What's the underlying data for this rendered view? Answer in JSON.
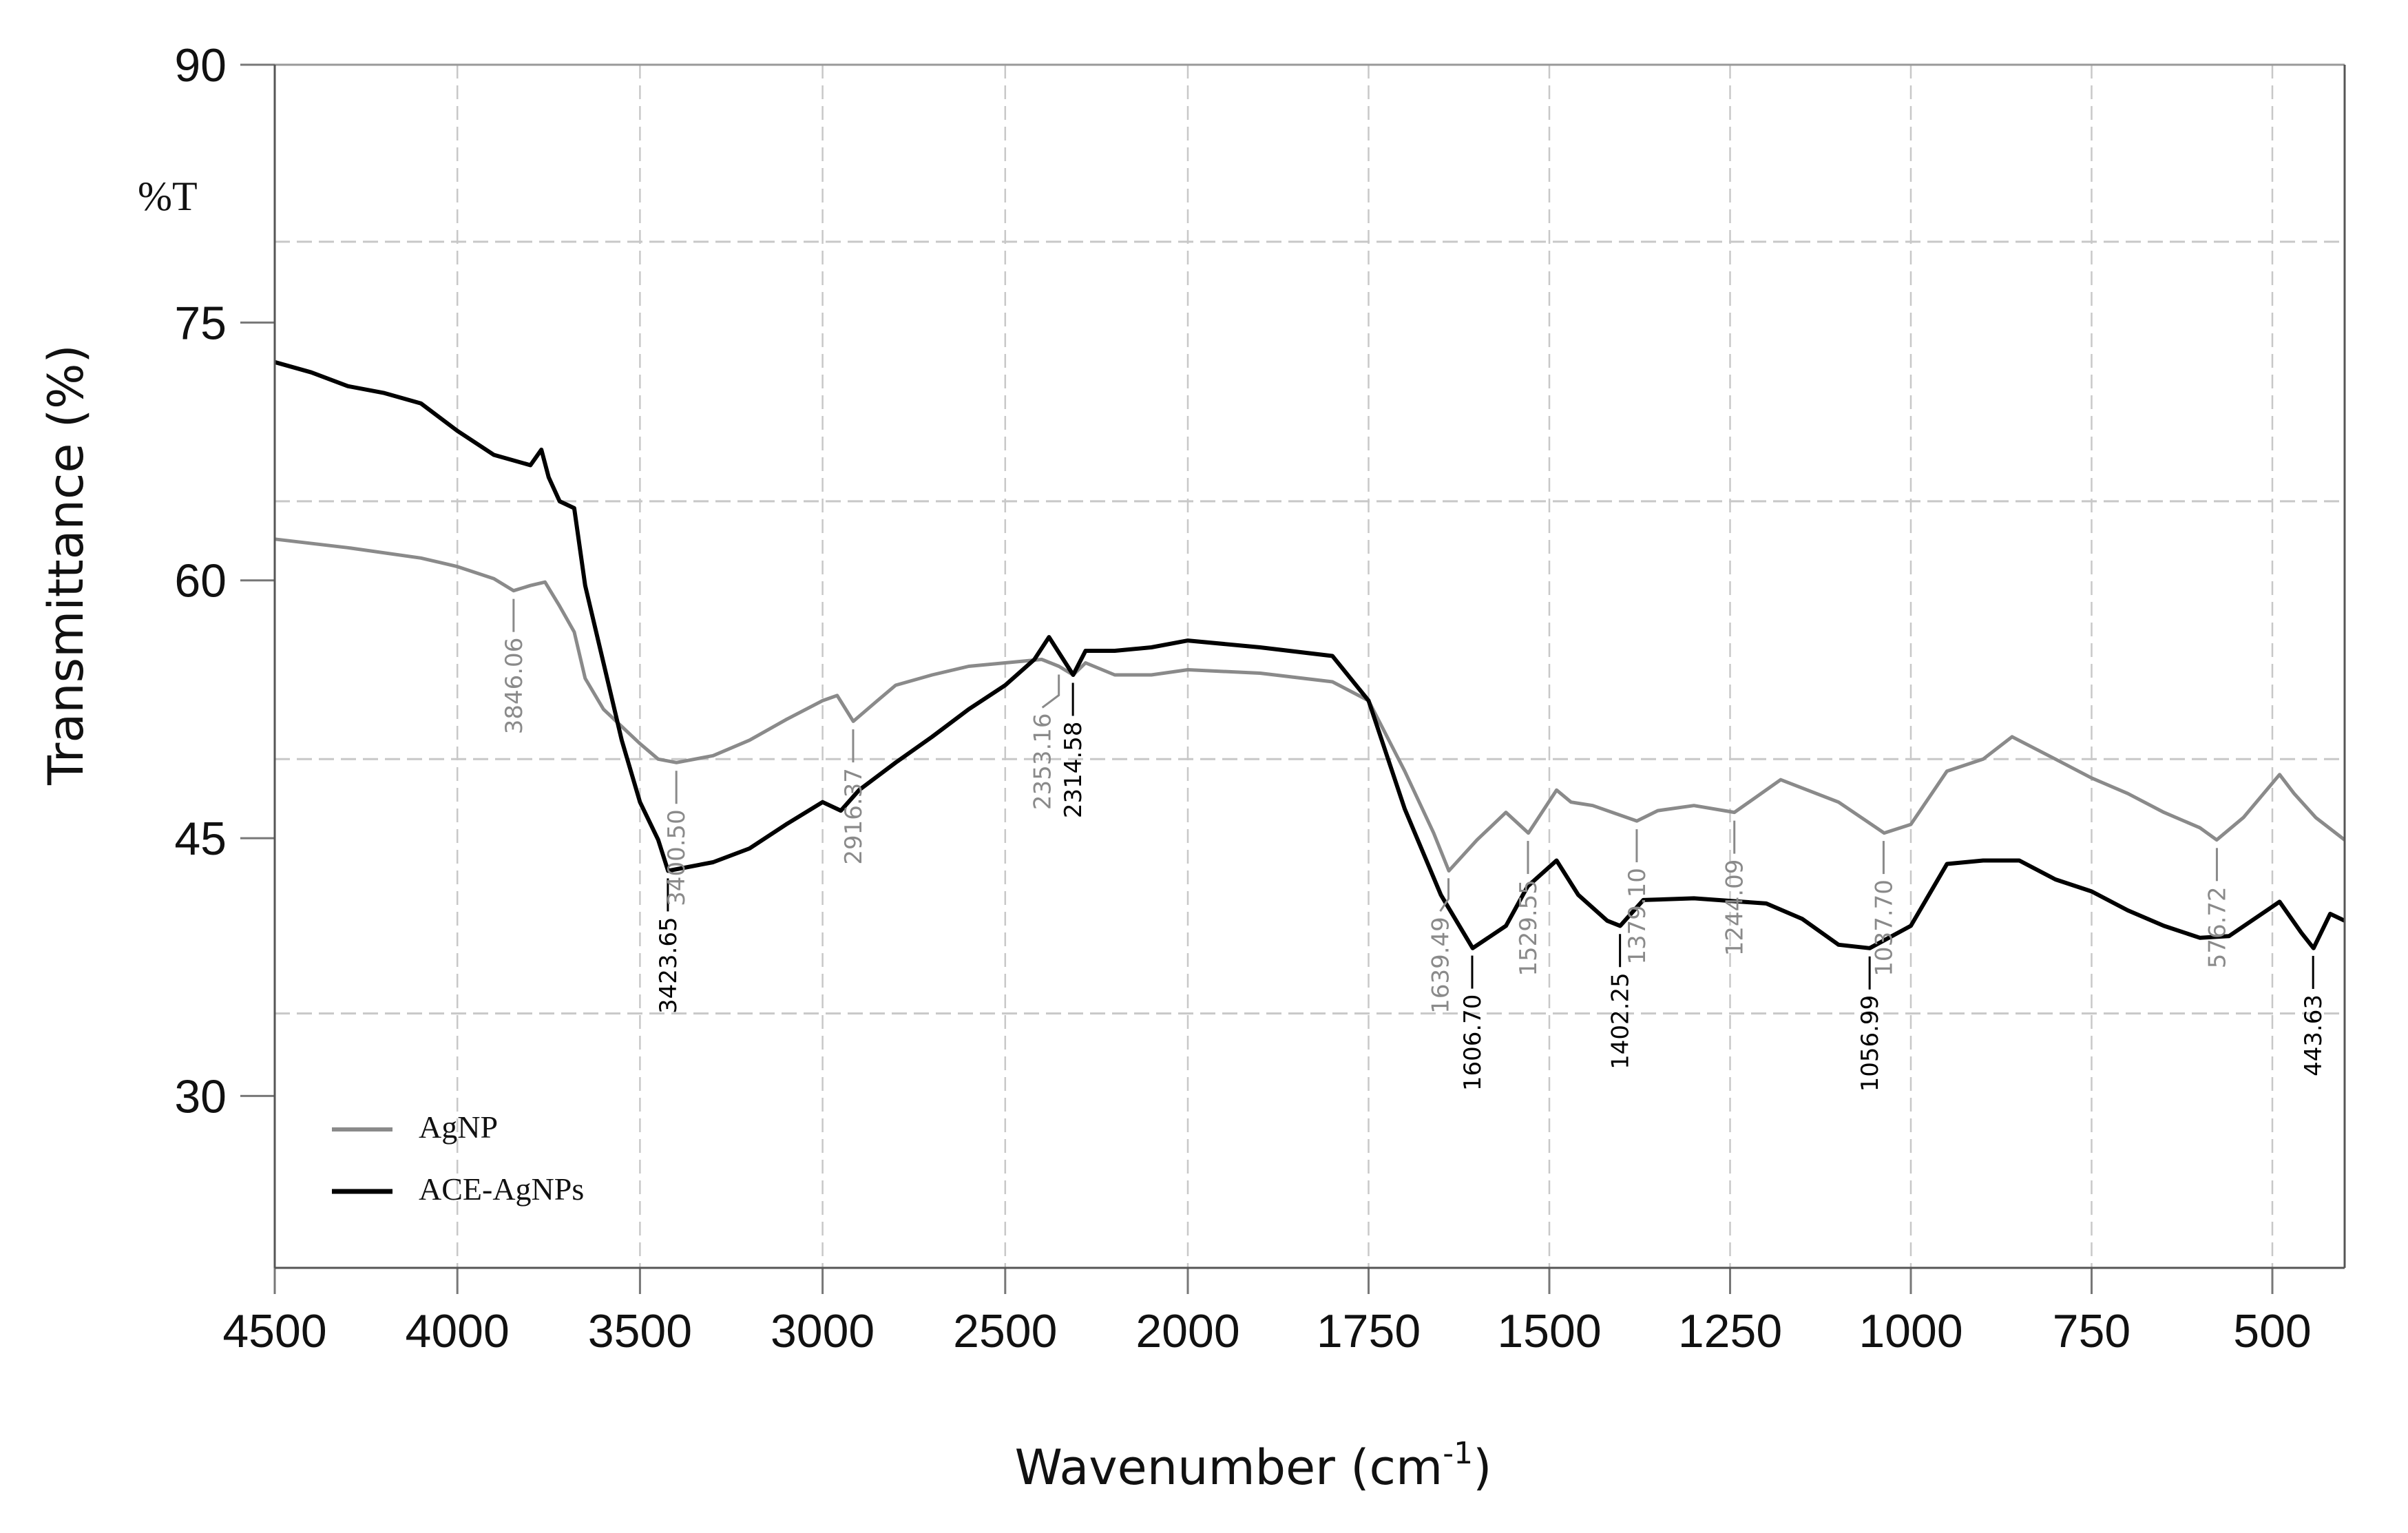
{
  "chart_data": {
    "type": "line",
    "title": "",
    "corner_label": "%T",
    "xlabel": "Wavenumber (cm",
    "xlabel_sup": "-1",
    "xlabel_close": ")",
    "ylabel": "Transmittance (%)",
    "xlim": [
      4500,
      400
    ],
    "ylim": [
      20,
      90
    ],
    "x_scale_note": "scale expands below 2000",
    "x_ticks": [
      4500,
      4000,
      3500,
      3000,
      2500,
      2000,
      1750,
      1500,
      1250,
      1000,
      750,
      500
    ],
    "y_ticks": [
      30,
      45,
      60,
      75,
      90
    ],
    "grid": true,
    "legend_position": "bottom-left",
    "series": [
      {
        "name": "AgNP",
        "color": "#8a8a8a",
        "points": [
          [
            4500,
            62.4
          ],
          [
            4300,
            61.9
          ],
          [
            4100,
            61.3
          ],
          [
            4000,
            60.8
          ],
          [
            3900,
            60.1
          ],
          [
            3846,
            59.4
          ],
          [
            3800,
            59.7
          ],
          [
            3760,
            59.9
          ],
          [
            3720,
            58.5
          ],
          [
            3680,
            57.0
          ],
          [
            3650,
            54.3
          ],
          [
            3600,
            52.5
          ],
          [
            3500,
            50.5
          ],
          [
            3450,
            49.6
          ],
          [
            3400,
            49.4
          ],
          [
            3300,
            49.8
          ],
          [
            3200,
            50.7
          ],
          [
            3100,
            51.9
          ],
          [
            3000,
            53.0
          ],
          [
            2960,
            53.3
          ],
          [
            2916,
            51.8
          ],
          [
            2850,
            53.0
          ],
          [
            2800,
            53.9
          ],
          [
            2700,
            54.5
          ],
          [
            2600,
            55.0
          ],
          [
            2500,
            55.2
          ],
          [
            2400,
            55.4
          ],
          [
            2353,
            55.0
          ],
          [
            2314,
            54.5
          ],
          [
            2280,
            55.2
          ],
          [
            2200,
            54.5
          ],
          [
            2100,
            54.5
          ],
          [
            2000,
            54.8
          ],
          [
            1900,
            54.6
          ],
          [
            1800,
            54.1
          ],
          [
            1750,
            53.0
          ],
          [
            1700,
            48.9
          ],
          [
            1660,
            45.3
          ],
          [
            1639,
            43.1
          ],
          [
            1600,
            44.9
          ],
          [
            1560,
            46.5
          ],
          [
            1529,
            45.3
          ],
          [
            1490,
            47.8
          ],
          [
            1470,
            47.1
          ],
          [
            1440,
            46.9
          ],
          [
            1379,
            46.0
          ],
          [
            1350,
            46.6
          ],
          [
            1300,
            46.9
          ],
          [
            1244,
            46.5
          ],
          [
            1180,
            48.4
          ],
          [
            1100,
            47.1
          ],
          [
            1037,
            45.3
          ],
          [
            1000,
            45.8
          ],
          [
            950,
            48.9
          ],
          [
            900,
            49.6
          ],
          [
            860,
            50.9
          ],
          [
            800,
            49.6
          ],
          [
            750,
            48.5
          ],
          [
            700,
            47.6
          ],
          [
            650,
            46.5
          ],
          [
            600,
            45.6
          ],
          [
            577,
            44.9
          ],
          [
            540,
            46.2
          ],
          [
            490,
            48.7
          ],
          [
            470,
            47.6
          ],
          [
            440,
            46.2
          ],
          [
            400,
            44.9
          ]
        ],
        "peaks": [
          "3846.06",
          "3400.50",
          "2916.37",
          "2353.16",
          "1639.49",
          "1529.55",
          "1379.10",
          "1244.09",
          "1037.70",
          "576.72"
        ]
      },
      {
        "name": "ACE-AgNPs",
        "color": "#000000",
        "points": [
          [
            4500,
            72.7
          ],
          [
            4400,
            72.1
          ],
          [
            4300,
            71.3
          ],
          [
            4200,
            70.9
          ],
          [
            4100,
            70.3
          ],
          [
            4000,
            68.7
          ],
          [
            3900,
            67.3
          ],
          [
            3800,
            66.7
          ],
          [
            3770,
            67.6
          ],
          [
            3750,
            66.0
          ],
          [
            3720,
            64.6
          ],
          [
            3680,
            64.2
          ],
          [
            3650,
            59.7
          ],
          [
            3600,
            55.2
          ],
          [
            3550,
            50.7
          ],
          [
            3500,
            47.1
          ],
          [
            3450,
            44.9
          ],
          [
            3423,
            43.1
          ],
          [
            3300,
            43.6
          ],
          [
            3200,
            44.4
          ],
          [
            3100,
            45.8
          ],
          [
            3000,
            47.1
          ],
          [
            2950,
            46.6
          ],
          [
            2900,
            47.8
          ],
          [
            2800,
            49.4
          ],
          [
            2700,
            50.9
          ],
          [
            2600,
            52.5
          ],
          [
            2500,
            53.9
          ],
          [
            2420,
            55.4
          ],
          [
            2380,
            56.7
          ],
          [
            2314,
            54.5
          ],
          [
            2280,
            55.9
          ],
          [
            2200,
            55.9
          ],
          [
            2100,
            56.1
          ],
          [
            2000,
            56.5
          ],
          [
            1900,
            56.1
          ],
          [
            1800,
            55.6
          ],
          [
            1750,
            53.0
          ],
          [
            1700,
            46.7
          ],
          [
            1650,
            41.7
          ],
          [
            1606,
            38.6
          ],
          [
            1560,
            39.9
          ],
          [
            1530,
            42.2
          ],
          [
            1490,
            43.7
          ],
          [
            1460,
            41.7
          ],
          [
            1420,
            40.2
          ],
          [
            1402,
            39.9
          ],
          [
            1370,
            41.4
          ],
          [
            1300,
            41.5
          ],
          [
            1200,
            41.2
          ],
          [
            1150,
            40.3
          ],
          [
            1100,
            38.8
          ],
          [
            1057,
            38.6
          ],
          [
            1000,
            39.9
          ],
          [
            950,
            43.5
          ],
          [
            900,
            43.7
          ],
          [
            850,
            43.7
          ],
          [
            800,
            42.6
          ],
          [
            750,
            41.9
          ],
          [
            700,
            40.8
          ],
          [
            650,
            39.9
          ],
          [
            600,
            39.2
          ],
          [
            560,
            39.3
          ],
          [
            490,
            41.3
          ],
          [
            460,
            39.5
          ],
          [
            443,
            38.6
          ],
          [
            420,
            40.6
          ],
          [
            400,
            40.2
          ]
        ],
        "peaks": [
          "3423.65",
          "2314.58",
          "1606.70",
          "1402.25",
          "1056.99",
          "443.63"
        ]
      }
    ]
  }
}
